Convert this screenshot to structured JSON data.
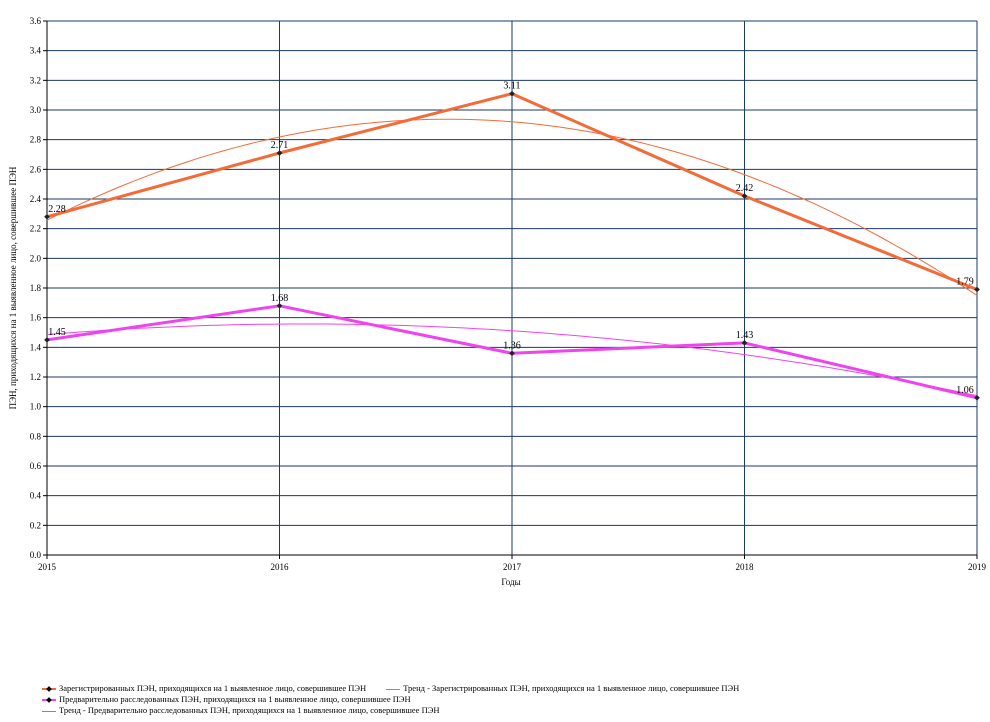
{
  "chart_data": {
    "type": "line",
    "xlabel": "Годы",
    "ylabel": "ПЭН, приходящихся на 1 выявленное лицо, совершившее ПЭН",
    "categories": [
      "2015",
      "2016",
      "2017",
      "2018",
      "2019"
    ],
    "ylim": [
      0,
      3.6
    ],
    "yticks": [
      "0.0",
      "0.2",
      "0.4",
      "0.6",
      "0.8",
      "1.0",
      "1.2",
      "1.4",
      "1.6",
      "1.8",
      "2.0",
      "2.2",
      "2.4",
      "2.6",
      "2.8",
      "3.0",
      "3.2",
      "3.4",
      "3.6"
    ],
    "grid": true,
    "legend_position": "bottom",
    "series": [
      {
        "name": "Зарегистрированных ПЭН, приходящихся на 1 выявленное лицо, совершившее ПЭН",
        "values": [
          2.28,
          2.71,
          3.11,
          2.42,
          1.79
        ],
        "labels": [
          "2.28",
          "2.71",
          "3.11",
          "2.42",
          "1.79"
        ],
        "color": "#f26b38",
        "style": "thick-marker"
      },
      {
        "name": "Тренд - Зарегистрированных ПЭН, приходящихся на 1 выявленное лицо, совершившее ПЭН",
        "trend_of": 0,
        "trend_type": "polynomial-2",
        "values": [
          2.3,
          2.82,
          2.92,
          2.57,
          1.73
        ],
        "color": "#f26b38",
        "style": "thin"
      },
      {
        "name": "Предварительно расследованных ПЭН, приходящихся на 1 выявленное лицо, совершившее ПЭН",
        "values": [
          1.45,
          1.68,
          1.36,
          1.43,
          1.06
        ],
        "labels": [
          "1.45",
          "1.68",
          "1.36",
          "1.43",
          "1.06"
        ],
        "color": "#ee44ee",
        "style": "thick-marker"
      },
      {
        "name": "Тренд - Предварительно расследованных ПЭН, приходящихся на 1 выявленное лицо, совершившее ПЭН",
        "trend_of": 2,
        "trend_type": "polynomial-2",
        "values": [
          1.5,
          1.56,
          1.51,
          1.35,
          1.07
        ],
        "color": "#ee44ee",
        "style": "thin"
      }
    ]
  }
}
